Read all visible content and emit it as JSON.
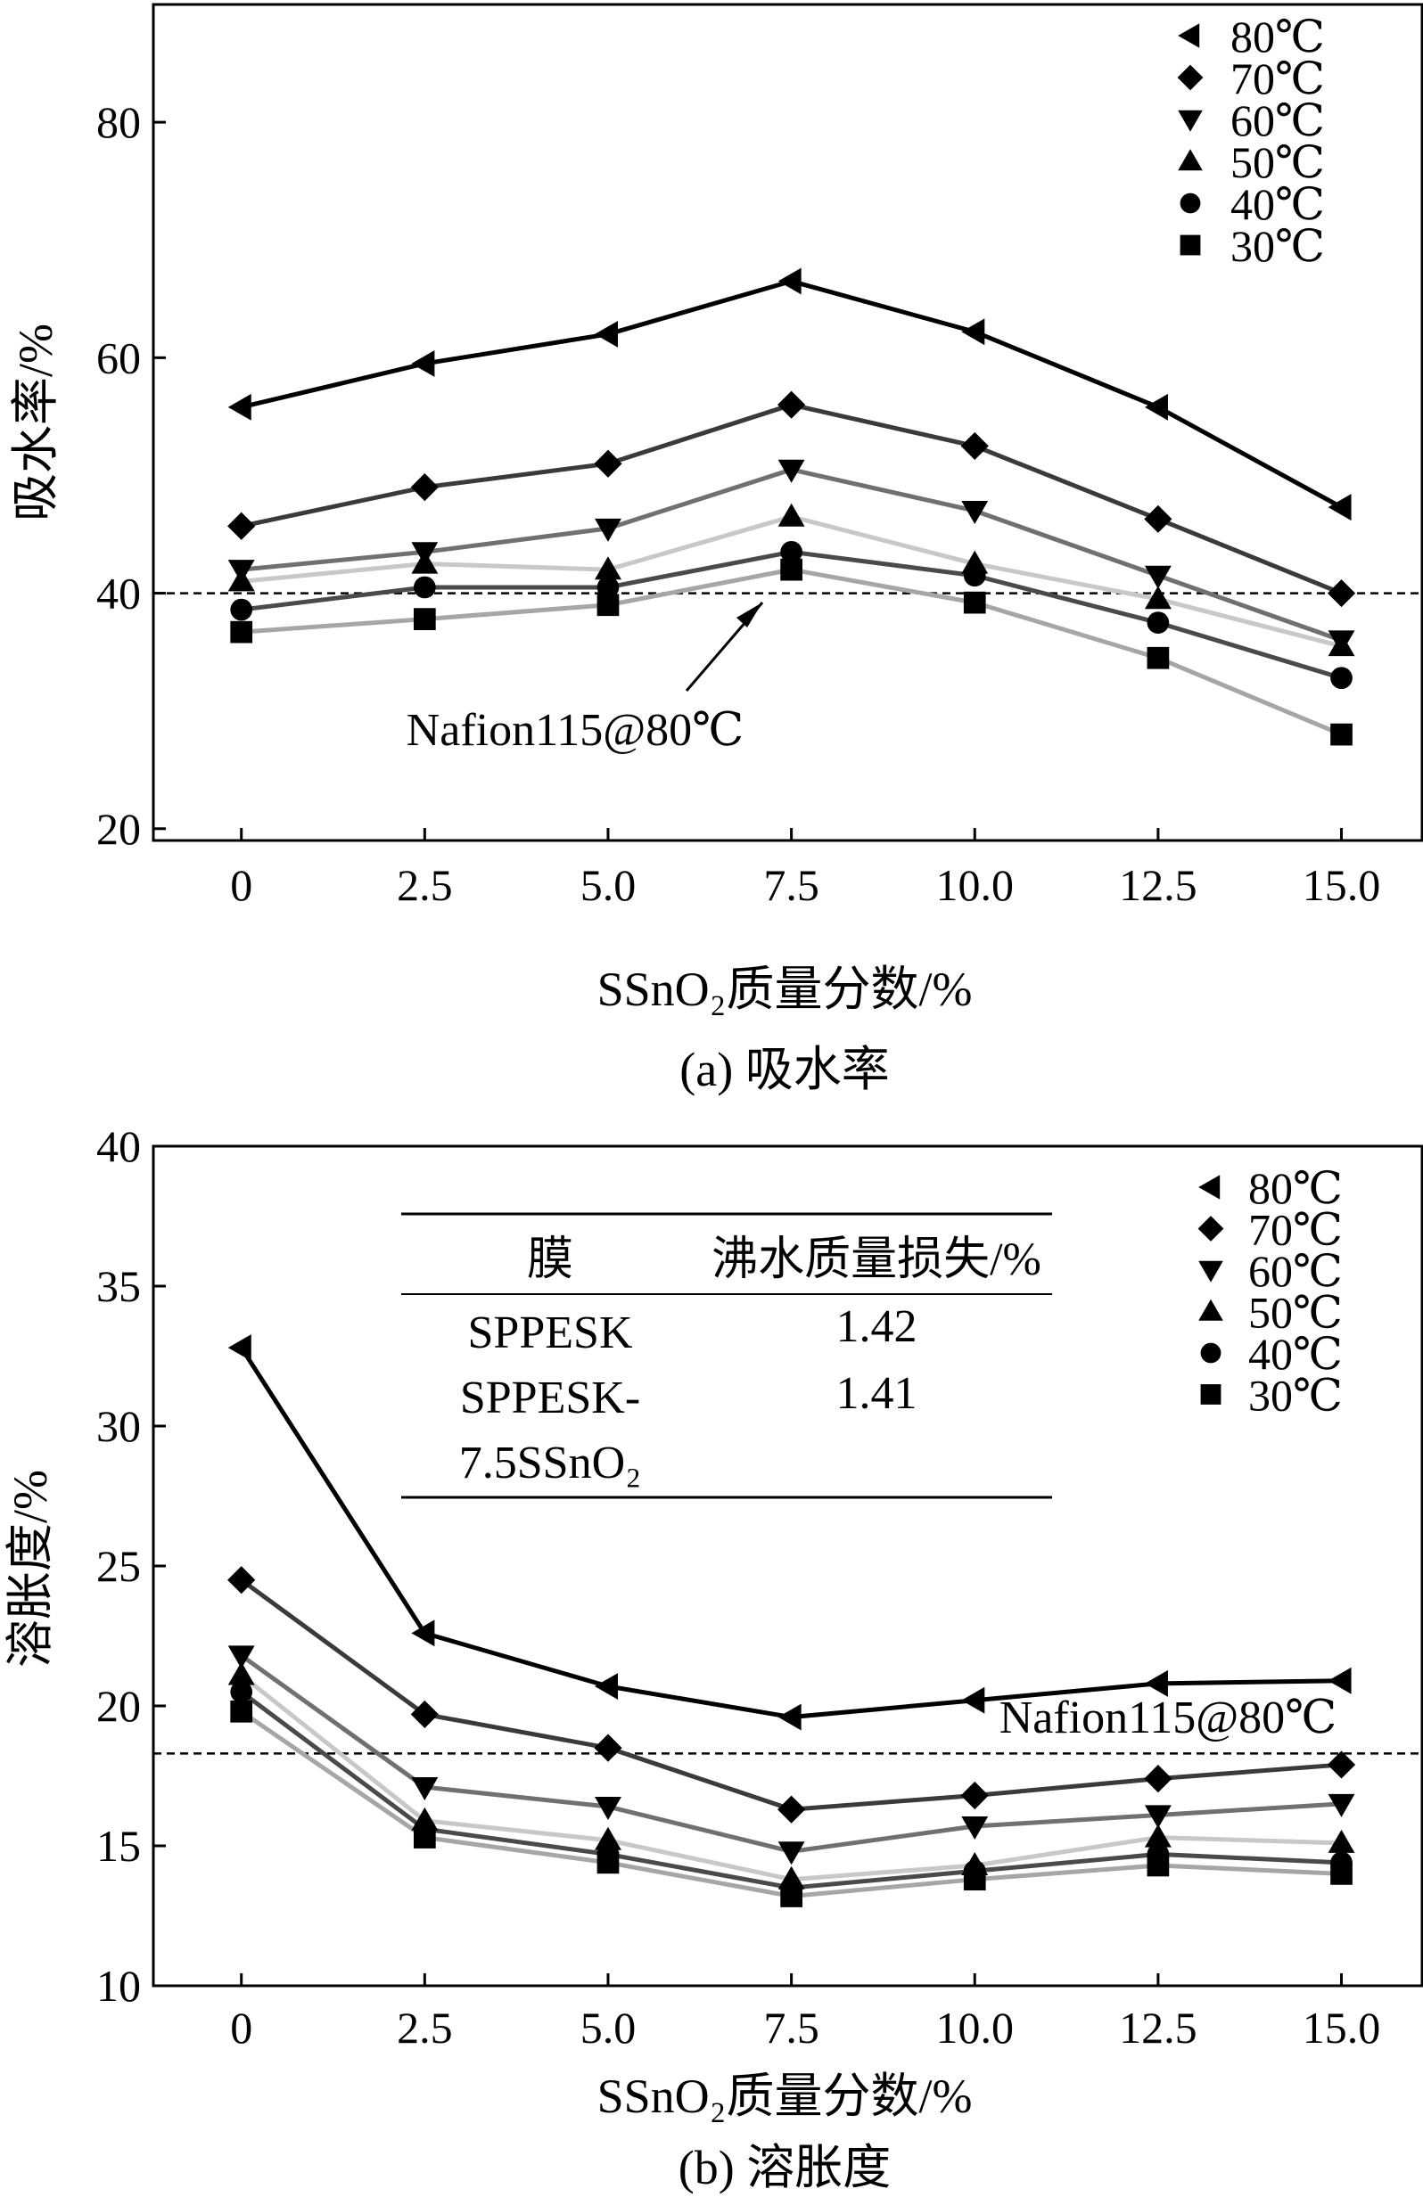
{
  "chart_data": [
    {
      "id": "a",
      "type": "line",
      "caption": "(a) 吸水率",
      "xlabel": "SSnO₂质量分数/%",
      "ylabel": "吸水率/%",
      "xlim": [
        -1.2,
        16.1
      ],
      "ylim": [
        19,
        90
      ],
      "x_ticks": [
        "0",
        "2.5",
        "5.0",
        "7.5",
        "10.0",
        "12.5",
        "15.0"
      ],
      "y_ticks": [
        "20",
        "40",
        "60",
        "80"
      ],
      "x": [
        0,
        2.5,
        5.0,
        7.5,
        10.0,
        12.5,
        15.0
      ],
      "series": [
        {
          "name": "80℃",
          "marker": "triangle-left",
          "color": "#000000",
          "values": [
            55.8,
            59.5,
            62.0,
            66.5,
            62.2,
            55.8,
            47.3
          ]
        },
        {
          "name": "70℃",
          "marker": "diamond",
          "color": "#3a3a3a",
          "values": [
            45.7,
            49.0,
            51.0,
            56.0,
            52.5,
            46.3,
            40.0
          ]
        },
        {
          "name": "60℃",
          "marker": "triangle-down",
          "color": "#707070",
          "values": [
            42.0,
            43.5,
            45.5,
            50.5,
            47.0,
            41.5,
            36.0
          ]
        },
        {
          "name": "50℃",
          "marker": "triangle-up",
          "color": "#c8c8c8",
          "values": [
            41.0,
            42.5,
            42.0,
            46.5,
            42.5,
            39.5,
            35.5
          ]
        },
        {
          "name": "40℃",
          "marker": "circle",
          "color": "#4a4a4a",
          "values": [
            38.6,
            40.5,
            40.5,
            43.5,
            41.5,
            37.5,
            32.8
          ]
        },
        {
          "name": "30℃",
          "marker": "square",
          "color": "#a6a6a6",
          "values": [
            36.7,
            37.8,
            39.0,
            42.0,
            39.2,
            34.5,
            28.0
          ]
        }
      ],
      "reference_line": {
        "value": 40,
        "label": "Nafion115@80℃"
      }
    },
    {
      "id": "b",
      "type": "line",
      "caption": "(b) 溶胀度",
      "xlabel": "SSnO₂质量分数/%",
      "ylabel": "溶胀度/%",
      "xlim": [
        -1.2,
        16.1
      ],
      "ylim": [
        10,
        40
      ],
      "x_ticks": [
        "0",
        "2.5",
        "5.0",
        "7.5",
        "10.0",
        "12.5",
        "15.0"
      ],
      "y_ticks": [
        "10",
        "15",
        "20",
        "25",
        "30",
        "35",
        "40"
      ],
      "x": [
        0,
        2.5,
        5.0,
        7.5,
        10.0,
        12.5,
        15.0
      ],
      "series": [
        {
          "name": "80℃",
          "marker": "triangle-left",
          "color": "#000000",
          "values": [
            32.8,
            22.6,
            20.7,
            19.6,
            20.2,
            20.8,
            20.9
          ]
        },
        {
          "name": "70℃",
          "marker": "diamond",
          "color": "#3a3a3a",
          "values": [
            24.5,
            19.7,
            18.5,
            16.3,
            16.8,
            17.4,
            17.9
          ]
        },
        {
          "name": "60℃",
          "marker": "triangle-down",
          "color": "#707070",
          "values": [
            21.8,
            17.1,
            16.4,
            14.8,
            15.7,
            16.1,
            16.5
          ]
        },
        {
          "name": "50℃",
          "marker": "triangle-up",
          "color": "#c8c8c8",
          "values": [
            21.1,
            15.9,
            15.2,
            13.8,
            14.3,
            15.3,
            15.1
          ]
        },
        {
          "name": "40℃",
          "marker": "circle",
          "color": "#4a4a4a",
          "values": [
            20.5,
            15.6,
            14.7,
            13.5,
            14.1,
            14.7,
            14.4
          ]
        },
        {
          "name": "30℃",
          "marker": "square",
          "color": "#a6a6a6",
          "values": [
            19.8,
            15.3,
            14.4,
            13.2,
            13.8,
            14.3,
            14.0
          ]
        }
      ],
      "reference_line": {
        "value": 18.3,
        "label": "Nafion115@80℃"
      },
      "inset_table": {
        "headers": [
          "膜",
          "沸水质量损失/%"
        ],
        "rows": [
          {
            "membrane": "SPPESK",
            "loss": "1.42"
          },
          {
            "membrane_line1": "SPPESK-",
            "membrane_line2": "7.5SSnO₂",
            "loss": "1.41"
          }
        ]
      }
    }
  ]
}
